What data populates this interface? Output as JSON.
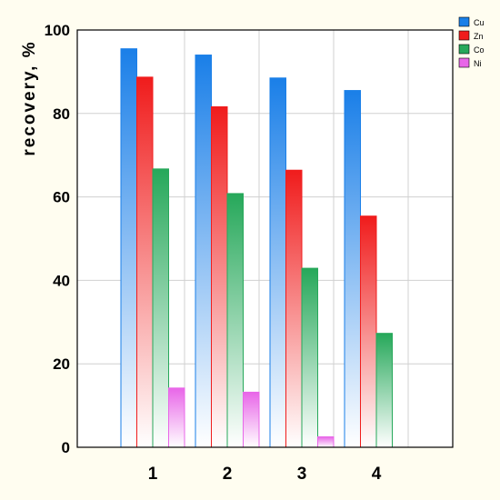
{
  "chart_data": {
    "type": "bar",
    "title": "",
    "xlabel": "",
    "ylabel": "recovery, %",
    "ylim": [
      0,
      100
    ],
    "yticks": [
      0,
      20,
      40,
      60,
      80,
      100
    ],
    "categories": [
      "1",
      "2",
      "3",
      "4"
    ],
    "grid": true,
    "legend_position": "top-right",
    "series": [
      {
        "name": "Cu",
        "values": [
          95.5,
          94,
          88.5,
          85.5
        ],
        "color": "#1a7fe8"
      },
      {
        "name": "Zn",
        "values": [
          88.7,
          81.6,
          66.4,
          55.4
        ],
        "color": "#f01c1c"
      },
      {
        "name": "Co",
        "values": [
          66.7,
          60.8,
          42.9,
          27.3
        ],
        "color": "#26a85a"
      },
      {
        "name": "Ni",
        "values": [
          14.2,
          13.2,
          2.5,
          0
        ],
        "color": "#e866e8"
      }
    ]
  }
}
